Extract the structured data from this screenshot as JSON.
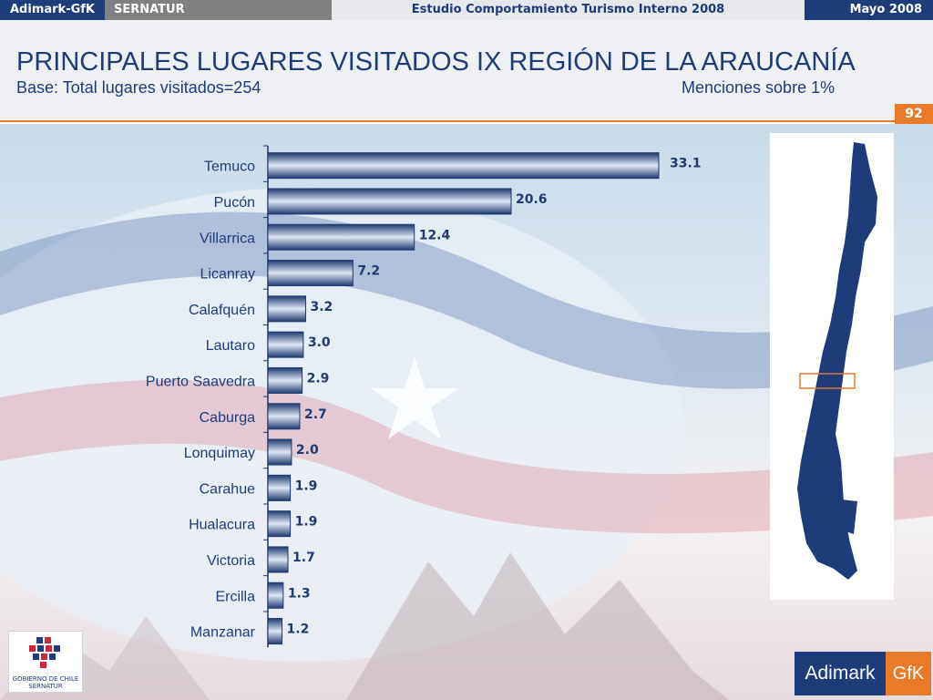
{
  "topbar": {
    "brand": "Adimark-GfK",
    "client": "SERNATUR",
    "study": "Estudio Comportamiento Turismo Interno 2008",
    "date": "Mayo 2008"
  },
  "header": {
    "title": "PRINCIPALES LUGARES VISITADOS IX REGIÓN DE LA ARAUCANÍA",
    "subtitle": "Base: Total lugares visitados=254",
    "note": "Menciones sobre 1%",
    "page_number": "92"
  },
  "logos": {
    "government": "GOBIERNO DE CHILE",
    "government_sub": "SERNATUR",
    "adimark_left": "Adimark",
    "adimark_right": "GfK"
  },
  "colors": {
    "navy": "#1f3c7a",
    "orange": "#e87a2a",
    "bar_dark": "#1f3a6e",
    "bar_light": "#dfe6f3"
  },
  "icons": [
    "chile-map-icon",
    "gobierno-de-chile-logo",
    "adimark-gfk-logo"
  ],
  "chart_data": {
    "type": "bar",
    "orientation": "horizontal",
    "categories": [
      "Temuco",
      "Pucón",
      "Villarrica",
      "Licanray",
      "Calafquén",
      "Lautaro",
      "Puerto Saavedra",
      "Caburga",
      "Lonquimay",
      "Carahue",
      "Hualacura",
      "Victoria",
      "Ercilla",
      "Manzanar"
    ],
    "values": [
      33.1,
      20.6,
      12.4,
      7.2,
      3.2,
      3.0,
      2.9,
      2.7,
      2.0,
      1.9,
      1.9,
      1.7,
      1.3,
      1.2
    ],
    "value_labels": [
      "33.1",
      "20.6",
      "12.4",
      "7.2",
      "3.2",
      "3.0",
      "2.9",
      "2.7",
      "2.0",
      "1.9",
      "1.9",
      "1.7",
      "1.3",
      "1.2"
    ],
    "title": "",
    "xlabel": "",
    "ylabel": "",
    "xlim": [
      0,
      33.1
    ],
    "grid": false,
    "legend": "none"
  }
}
